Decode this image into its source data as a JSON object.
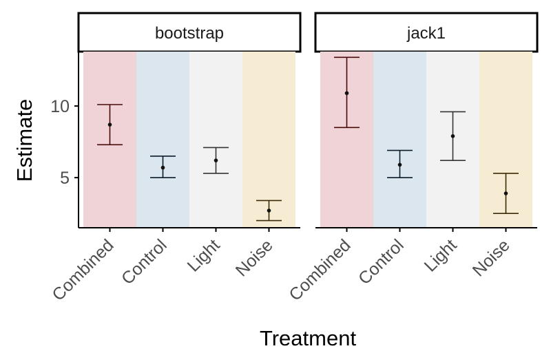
{
  "chart_data": {
    "type": "errorbar",
    "facets": [
      "bootstrap",
      "jack1"
    ],
    "categories": [
      "Combined",
      "Control",
      "Light",
      "Noise"
    ],
    "category_colors": [
      "#efd3d7",
      "#dce6ef",
      "#f2f2f2",
      "#f6ebd3"
    ],
    "bar_colors": [
      "#4a0a0a",
      "#0a1a2a",
      "#333333",
      "#3a2a05"
    ],
    "xlabel": "Treatment",
    "ylabel": "Estimate",
    "ylim": [
      1.5,
      13.8
    ],
    "yticks": [
      5,
      10
    ],
    "series": [
      {
        "facet": "bootstrap",
        "estimate": [
          8.7,
          5.7,
          6.2,
          2.7
        ],
        "lower": [
          7.3,
          5.0,
          5.3,
          2.0
        ],
        "upper": [
          10.1,
          6.5,
          7.1,
          3.4
        ]
      },
      {
        "facet": "jack1",
        "estimate": [
          10.9,
          5.9,
          7.9,
          3.9
        ],
        "lower": [
          8.5,
          5.0,
          6.2,
          2.5
        ],
        "upper": [
          13.4,
          6.9,
          9.6,
          5.3
        ]
      }
    ]
  }
}
